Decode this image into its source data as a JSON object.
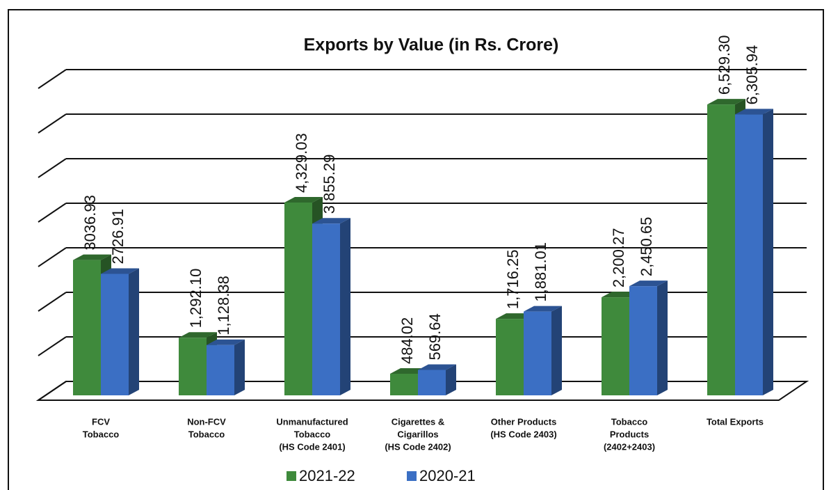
{
  "chart_data": {
    "type": "bar3d",
    "title": "Exports by Value (in Rs. Crore)",
    "categories": [
      [
        "FCV",
        "Tobacco"
      ],
      [
        "Non-FCV",
        "Tobacco"
      ],
      [
        "Unmanufactured",
        "Tobacco",
        "(HS Code 2401)"
      ],
      [
        "Cigarettes &",
        "Cigarillos",
        "(HS Code 2402)"
      ],
      [
        "Other Products",
        "(HS Code 2403)"
      ],
      [
        "Tobacco",
        "Products",
        "(2402+2403)"
      ],
      [
        "Total Exports"
      ]
    ],
    "series": [
      {
        "name": "2021-22",
        "color": "#3f8a3c",
        "values": [
          3036.93,
          1292.1,
          4329.03,
          484.02,
          1716.25,
          2200.27,
          6529.3
        ],
        "value_labels": [
          "3036.93",
          "1,292.10",
          "4,329.03",
          "484.02",
          "1,716.25",
          "2,200.27",
          "6,529.30"
        ]
      },
      {
        "name": "2020-21",
        "color": "#3b6fc4",
        "values": [
          2726.91,
          1128.38,
          3855.29,
          569.64,
          1881.01,
          2450.65,
          6305.94
        ],
        "value_labels": [
          "2726.91",
          "1,128.38",
          "3,855.29",
          "569.64",
          "1,881.01",
          "2,450.65",
          "6,305.94"
        ]
      }
    ],
    "ylim": [
      0,
      7000
    ],
    "yticks": [
      0,
      1000,
      2000,
      3000,
      4000,
      5000,
      6000,
      7000
    ],
    "grid": true
  }
}
